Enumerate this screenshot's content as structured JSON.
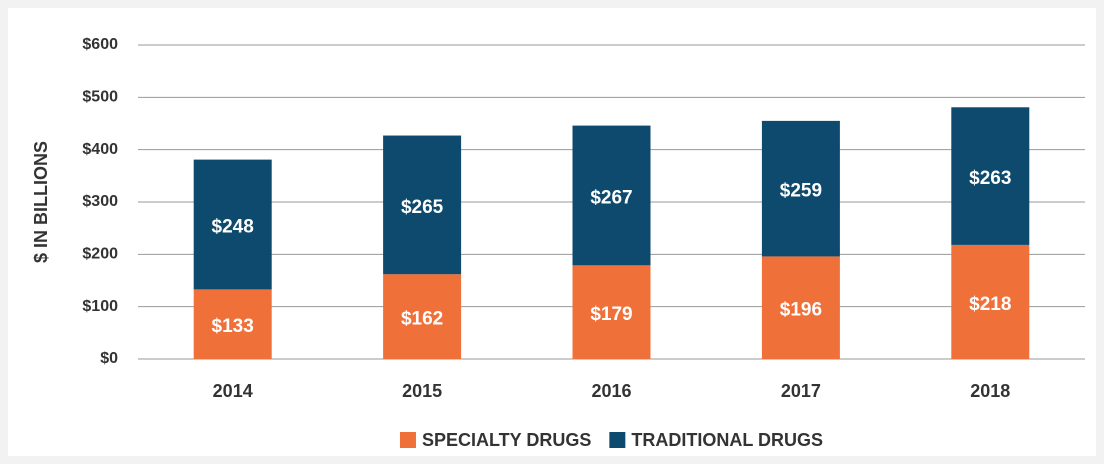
{
  "chart_data": {
    "type": "stacked_bar",
    "y_axis_label": "$ IN BILLIONS",
    "categories": [
      "2014",
      "2015",
      "2016",
      "2017",
      "2018"
    ],
    "series": [
      {
        "name": "SPECIALTY DRUGS",
        "color": "#f0703a",
        "values": [
          133,
          162,
          179,
          196,
          218
        ],
        "value_labels": [
          "$133",
          "$162",
          "$179",
          "$196",
          "$218"
        ]
      },
      {
        "name": "TRADITIONAL DRUGS",
        "color": "#0e4a6e",
        "values": [
          248,
          265,
          267,
          259,
          263
        ],
        "value_labels": [
          "$248",
          "$265",
          "$267",
          "$259",
          "$263"
        ]
      }
    ],
    "ylim": [
      0,
      600
    ],
    "yticks": [
      {
        "value": 0,
        "label": "$0"
      },
      {
        "value": 100,
        "label": "$100"
      },
      {
        "value": 200,
        "label": "$200"
      },
      {
        "value": 300,
        "label": "$300"
      },
      {
        "value": 400,
        "label": "$400"
      },
      {
        "value": 500,
        "label": "$500"
      },
      {
        "value": 600,
        "label": "$600"
      }
    ],
    "grid": true,
    "legend": "bottom"
  }
}
